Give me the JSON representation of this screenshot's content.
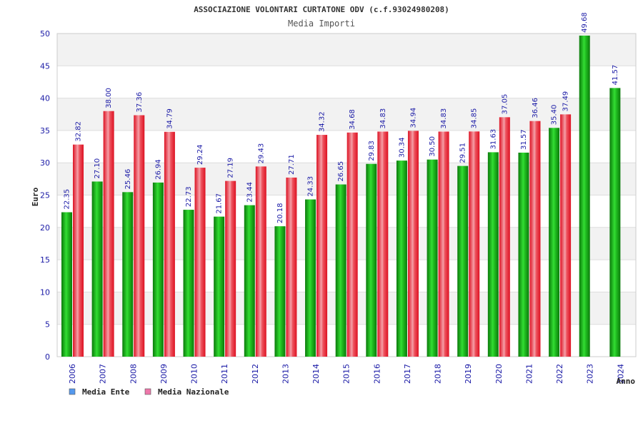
{
  "chart_data": {
    "type": "bar",
    "title": "ASSOCIAZIONE VOLONTARI CURTATONE ODV (c.f.93024980208)",
    "subtitle": "Media Importi",
    "xlabel": "Anno",
    "ylabel": "Euro",
    "ylim": [
      0,
      50
    ],
    "yticks": [
      0,
      5,
      10,
      15,
      20,
      25,
      30,
      35,
      40,
      45,
      50
    ],
    "grid": true,
    "legend_position": "bottom-left",
    "categories": [
      "2006",
      "2007",
      "2008",
      "2009",
      "2010",
      "2011",
      "2012",
      "2013",
      "2014",
      "2015",
      "2016",
      "2017",
      "2018",
      "2019",
      "2020",
      "2021",
      "2022",
      "2023",
      "2024"
    ],
    "series": [
      {
        "name": "Media Ente",
        "color": "#22bb22",
        "legend_color": "#5599ee",
        "values": [
          22.35,
          27.1,
          25.46,
          26.94,
          22.73,
          21.67,
          23.44,
          20.18,
          24.33,
          26.65,
          29.83,
          30.34,
          30.5,
          29.51,
          31.63,
          31.57,
          35.4,
          49.68,
          41.57
        ],
        "labels": [
          "22.35",
          "27.10",
          "25.46",
          "26.94",
          "22.73",
          "21.67",
          "23.44",
          "20.18",
          "24.33",
          "26.65",
          "29.83",
          "30.34",
          "30.50",
          "29.51",
          "31.63",
          "31.57",
          "35.40",
          "49.68",
          "41.57"
        ]
      },
      {
        "name": "Media Nazionale",
        "color": "#ee2233",
        "legend_color": "#ee77aa",
        "values": [
          32.82,
          38.0,
          37.36,
          34.79,
          29.24,
          27.19,
          29.43,
          27.71,
          34.32,
          34.68,
          34.83,
          34.94,
          34.83,
          34.85,
          37.05,
          36.46,
          37.49,
          null,
          null
        ],
        "labels": [
          "32.82",
          "38.00",
          "37.36",
          "34.79",
          "29.24",
          "27.19",
          "29.43",
          "27.71",
          "34.32",
          "34.68",
          "34.83",
          "34.94",
          "34.83",
          "34.85",
          "37.05",
          "36.46",
          "37.49",
          "",
          ""
        ]
      }
    ]
  }
}
